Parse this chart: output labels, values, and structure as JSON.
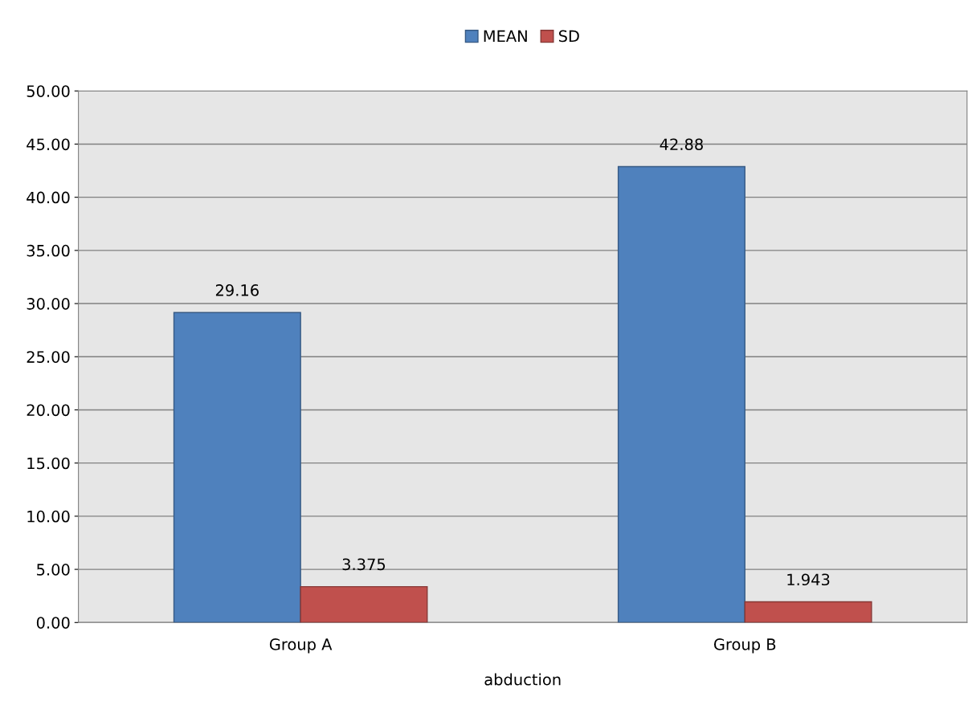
{
  "chart_data": {
    "type": "bar",
    "xlabel": "abduction",
    "categories": [
      "Group A",
      "Group B"
    ],
    "series": [
      {
        "name": "MEAN",
        "color": "#4f81bd",
        "values": [
          29.16,
          42.88
        ]
      },
      {
        "name": "SD",
        "color": "#c0504d",
        "values": [
          3.375,
          1.943
        ]
      }
    ],
    "ylim": [
      0,
      50
    ],
    "yticks": [
      {
        "value": 0,
        "label": "0.00"
      },
      {
        "value": 5,
        "label": "5.00"
      },
      {
        "value": 10,
        "label": "10.00"
      },
      {
        "value": 15,
        "label": "15.00"
      },
      {
        "value": 20,
        "label": "20.00"
      },
      {
        "value": 25,
        "label": "25.00"
      },
      {
        "value": 30,
        "label": "30.00"
      },
      {
        "value": 35,
        "label": "35.00"
      },
      {
        "value": 40,
        "label": "40.00"
      },
      {
        "value": 45,
        "label": "45.00"
      },
      {
        "value": 50,
        "label": "50.00"
      }
    ],
    "grid": "y",
    "legend": "top",
    "data_labels": true
  }
}
